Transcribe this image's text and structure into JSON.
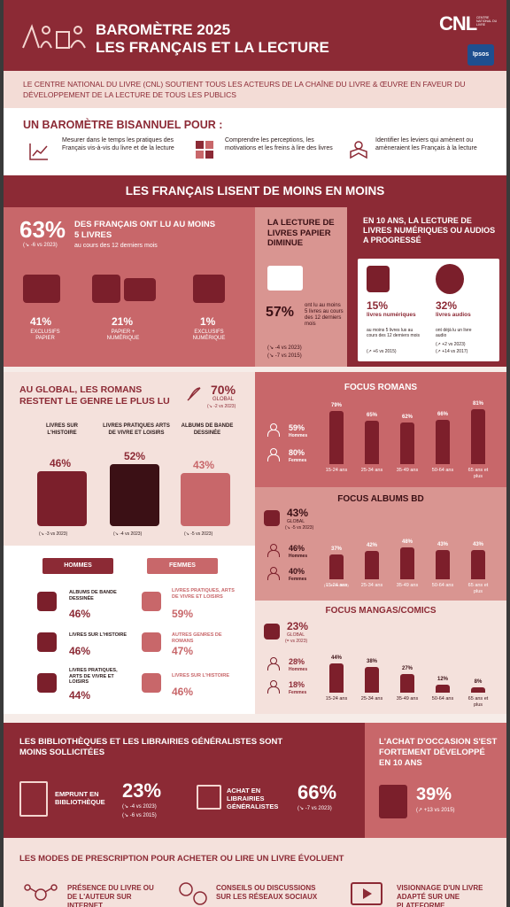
{
  "header": {
    "title1": "BAROMÈTRE 2025",
    "title2": "LES FRANÇAIS ET LA LECTURE",
    "logo": "CNL",
    "logo_sub": "CENTRE NATIONAL DU LIVRE",
    "partner": "Ipsos"
  },
  "intro": "LE CENTRE NATIONAL DU LIVRE (CNL) SOUTIENT TOUS LES ACTEURS DE LA CHAÎNE DU LIVRE & ŒUVRE EN FAVEUR DU DÉVELOPPEMENT DE LA LECTURE DE TOUS LES PUBLICS",
  "barometre": {
    "title": "UN BAROMÈTRE BISANNUEL POUR :",
    "items": [
      {
        "icon": "trend-chart-icon",
        "text": "Mesurer dans le temps les pratiques des Français vis-à-vis du livre et de la lecture"
      },
      {
        "icon": "puzzle-icon",
        "text": "Comprendre les perceptions, les motivations et les freins à lire des livres"
      },
      {
        "icon": "reader-icon",
        "text": "Identifier les leviers qui amènent ou amèneraient les Français à la lecture"
      }
    ]
  },
  "section1": {
    "title": "LES FRANÇAIS LISENT DE MOINS EN MOINS"
  },
  "lu5": {
    "pct": "63%",
    "delta": "(↘ -6 vs 2023)",
    "text": "DES FRANÇAIS ONT LU AU MOINS 5 LIVRES",
    "sub": "au cours des 12 derniers mois",
    "formats": [
      {
        "pct": "41%",
        "label": "EXCLUSIFS PAPIER"
      },
      {
        "pct": "21%",
        "label": "PAPIER + NUMÉRIQUE"
      },
      {
        "pct": "1%",
        "label": "EXCLUSIFS NUMÉRIQUE"
      }
    ]
  },
  "papier": {
    "title": "LA LECTURE DE LIVRES PAPIER DIMINUE",
    "pct": "57%",
    "text": "ont lu au moins 5 livres au cours des 12 derniers mois",
    "d1": "(↘ -4 vs 2023)",
    "d2": "(↘ -7 vs 2015)"
  },
  "numerique": {
    "title": "EN 10 ANS, LA LECTURE DE LIVRES NUMÉRIQUES OU AUDIOS A PROGRESSÉ",
    "a": {
      "pct": "15%",
      "label": "livres numériques",
      "text": "au moins 5 livres lus au cours des 12 derniers mois",
      "delta": "(↗ +6 vs 2015)"
    },
    "b": {
      "pct": "32%",
      "label": "livres audios",
      "text": "ont déjà lu un livre audio",
      "d1": "(↗ +2 vs 2023)",
      "d2": "(↗ +14 vs 2017)"
    }
  },
  "romans": {
    "title": "AU GLOBAL, LES ROMANS RESTENT LE GENRE LE PLUS LU",
    "pct": "70%",
    "global": "GLOBAL",
    "delta": "(↘ -2 vs 2023)",
    "genres": [
      {
        "label": "LIVRES SUR L'HISTOIRE",
        "pct": "46%",
        "delta": "(↘ -3 vs 2023)"
      },
      {
        "label": "LIVRES PRATIQUES ARTS DE VIVRE ET LOISIRS",
        "pct": "52%",
        "delta": "(↘ -4 vs 2023)"
      },
      {
        "label": "ALBUMS DE BANDE DESSINÉE",
        "pct": "43%",
        "delta": "(↘ -5 vs 2023)"
      }
    ]
  },
  "sexes": {
    "hommes": "HOMMES",
    "femmes": "FEMMES",
    "h": [
      {
        "label": "ALBUMS DE BANDE DESSINÉE",
        "pct": "46%"
      },
      {
        "label": "LIVRES SUR L'HISTOIRE",
        "pct": "46%"
      },
      {
        "label": "LIVRES PRATIQUES, ARTS DE VIVRE ET LOISIRS",
        "pct": "44%"
      }
    ],
    "f": [
      {
        "label": "LIVRES PRATIQUES, ARTS DE VIVRE ET LOISIRS",
        "pct": "59%"
      },
      {
        "label": "AUTRES GENRES DE ROMANS",
        "pct": "47%"
      },
      {
        "label": "LIVRES SUR L'HISTOIRE",
        "pct": "46%"
      }
    ]
  },
  "focus": {
    "romans": {
      "title": "FOCUS ROMANS",
      "hommes": "59%",
      "femmes": "80%",
      "h_lbl": "Hommes",
      "f_lbl": "Femmes"
    },
    "bd": {
      "title": "FOCUS ALBUMS BD",
      "global": "43%",
      "g_lbl": "GLOBAL",
      "delta": "(↘ -5 vs 2023)",
      "hommes": "46%",
      "femmes": "40%",
      "h_lbl": "Hommes",
      "f_lbl": "Femmes",
      "first_delta": "(↘ -11 vs 2023)"
    },
    "mangas": {
      "title": "FOCUS MANGAS/COMICS",
      "global": "23%",
      "g_lbl": "GLOBAL",
      "delta": "(= vs 2023)",
      "hommes": "28%",
      "femmes": "18%",
      "h_lbl": "Hommes",
      "f_lbl": "Femmes"
    }
  },
  "chart_data": [
    {
      "type": "bar",
      "title": "FOCUS ROMANS",
      "categories": [
        "15-24 ans",
        "25-34 ans",
        "35-49 ans",
        "50-64 ans",
        "65 ans et plus"
      ],
      "values": [
        79,
        65,
        62,
        66,
        81
      ],
      "ylim": [
        0,
        100
      ]
    },
    {
      "type": "bar",
      "title": "FOCUS ALBUMS BD",
      "categories": [
        "15-24 ans",
        "25-34 ans",
        "35-49 ans",
        "50-64 ans",
        "65 ans et plus"
      ],
      "values": [
        37,
        42,
        48,
        43,
        43
      ],
      "ylim": [
        0,
        100
      ]
    },
    {
      "type": "bar",
      "title": "FOCUS MANGAS/COMICS",
      "categories": [
        "15-24 ans",
        "25-34 ans",
        "35-49 ans",
        "50-64 ans",
        "65 ans et plus"
      ],
      "values": [
        44,
        38,
        27,
        12,
        8
      ],
      "ylim": [
        0,
        100
      ]
    }
  ],
  "biblio": {
    "title": "LES BIBLIOTHÈQUES ET LES LIBRAIRIES GÉNÉRALISTES SONT MOINS SOLLICITÉES",
    "emprunt": "EMPRUNT EN BIBLIOTHÈQUE",
    "e_pct": "23%",
    "e_d1": "(↘ -4 vs 2023)",
    "e_d2": "(↘ -6 vs 2015)",
    "achat": "ACHAT EN LIBRAIRIES GÉNÉRALISTES",
    "a_pct": "66%",
    "a_d": "(↘ -7 vs 2023)"
  },
  "occasion": {
    "title": "L'ACHAT D'OCCASION S'EST FORTEMENT DÉVELOPPÉ EN 10 ANS",
    "pct": "39%",
    "delta": "(↗ +13 vs 2015)"
  },
  "prescription": {
    "title": "LES MODES DE PRESCRIPTION POUR ACHETER OU LIRE UN LIVRE ÉVOLUENT",
    "items": [
      "PRÉSENCE DU LIVRE OU DE L'AUTEUR SUR INTERNET",
      "CONSEILS OU DISCUSSIONS SUR LES RÉSEAUX SOCIAUX",
      "VISIONNAGE D'UN LIVRE ADAPTÉ SUR UNE PLATEFORME"
    ]
  }
}
